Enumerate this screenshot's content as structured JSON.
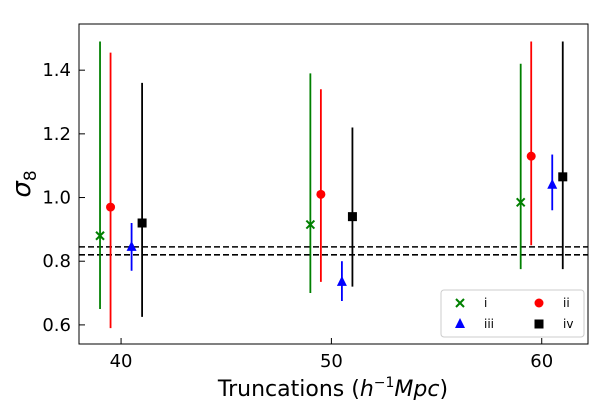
{
  "chart_data": {
    "type": "scatter",
    "xlabel_base": "Truncations (",
    "xlabel_unit_h": "h",
    "xlabel_unit_exp": "−1",
    "xlabel_unit_tail": "Mpc",
    "xlabel_close": ")",
    "ylabel_symbol": "σ",
    "ylabel_subscript": "8",
    "xlim": [
      38,
      62.2
    ],
    "ylim": [
      0.54,
      1.545
    ],
    "x_ticks": [
      40,
      50,
      60
    ],
    "x_tick_labels": [
      "40",
      "50",
      "60"
    ],
    "y_ticks": [
      0.6,
      0.8,
      1.0,
      1.2,
      1.4
    ],
    "y_tick_labels": [
      "0.6",
      "0.8",
      "1.0",
      "1.2",
      "1.4"
    ],
    "reference_lines": [
      0.82,
      0.845
    ],
    "reference_line_style": "dashed",
    "legend_position": "lower-right",
    "legend_columns": 2,
    "series": [
      {
        "name": "i",
        "marker": "x",
        "color": "#008000",
        "points": [
          {
            "x": 39.0,
            "y": 0.88,
            "ylo": 0.65,
            "yhi": 1.49
          },
          {
            "x": 49.0,
            "y": 0.915,
            "ylo": 0.7,
            "yhi": 1.39
          },
          {
            "x": 59.0,
            "y": 0.985,
            "ylo": 0.775,
            "yhi": 1.42
          }
        ]
      },
      {
        "name": "ii",
        "marker": "circle",
        "color": "#ff0000",
        "points": [
          {
            "x": 39.5,
            "y": 0.97,
            "ylo": 0.59,
            "yhi": 1.455
          },
          {
            "x": 49.5,
            "y": 1.01,
            "ylo": 0.735,
            "yhi": 1.34
          },
          {
            "x": 59.5,
            "y": 1.13,
            "ylo": 0.85,
            "yhi": 1.49
          }
        ]
      },
      {
        "name": "iii",
        "marker": "triangle",
        "color": "#0000ff",
        "points": [
          {
            "x": 40.5,
            "y": 0.845,
            "ylo": 0.77,
            "yhi": 0.92
          },
          {
            "x": 50.5,
            "y": 0.735,
            "ylo": 0.675,
            "yhi": 0.8
          },
          {
            "x": 60.5,
            "y": 1.04,
            "ylo": 0.96,
            "yhi": 1.135
          }
        ]
      },
      {
        "name": "iv",
        "marker": "square",
        "color": "#000000",
        "points": [
          {
            "x": 41.0,
            "y": 0.92,
            "ylo": 0.625,
            "yhi": 1.36
          },
          {
            "x": 51.0,
            "y": 0.94,
            "ylo": 0.72,
            "yhi": 1.22
          },
          {
            "x": 61.0,
            "y": 1.065,
            "ylo": 0.775,
            "yhi": 1.49
          }
        ]
      }
    ]
  }
}
